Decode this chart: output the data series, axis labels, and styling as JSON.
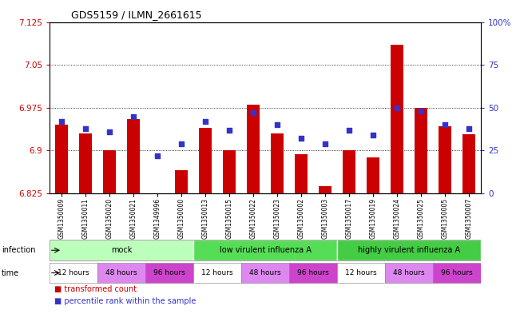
{
  "title": "GDS5159 / ILMN_2661615",
  "samples": [
    "GSM1350009",
    "GSM1350011",
    "GSM1350020",
    "GSM1350021",
    "GSM1349996",
    "GSM1350000",
    "GSM1350013",
    "GSM1350015",
    "GSM1350022",
    "GSM1350023",
    "GSM1350002",
    "GSM1350003",
    "GSM1350017",
    "GSM1350019",
    "GSM1350024",
    "GSM1350025",
    "GSM1350005",
    "GSM1350007"
  ],
  "bar_values": [
    6.945,
    6.93,
    6.9,
    6.955,
    6.825,
    6.865,
    6.94,
    6.9,
    6.98,
    6.93,
    6.893,
    6.838,
    6.9,
    6.888,
    7.085,
    6.975,
    6.943,
    6.928
  ],
  "dot_values": [
    42,
    38,
    36,
    45,
    22,
    29,
    42,
    37,
    47,
    40,
    32,
    29,
    37,
    34,
    50,
    48,
    40,
    38
  ],
  "y_min": 6.825,
  "y_max": 7.125,
  "y_ticks": [
    6.825,
    6.9,
    6.975,
    7.05,
    7.125
  ],
  "right_y_ticks": [
    0,
    25,
    50,
    75,
    100
  ],
  "bar_color": "#cc0000",
  "dot_color": "#3333cc",
  "bar_bottom": 6.825,
  "infection_groups": [
    {
      "label": "mock",
      "start": 0,
      "end": 6,
      "color": "#bbffbb"
    },
    {
      "label": "low virulent influenza A",
      "start": 6,
      "end": 12,
      "color": "#55dd55"
    },
    {
      "label": "highly virulent influenza A",
      "start": 12,
      "end": 18,
      "color": "#44cc44"
    }
  ],
  "time_labels": [
    "12 hours",
    "48 hours",
    "96 hours",
    "12 hours",
    "48 hours",
    "96 hours",
    "12 hours",
    "48 hours",
    "96 hours"
  ],
  "time_colors": [
    "#ffffff",
    "#dd88ee",
    "#cc44cc",
    "#ffffff",
    "#dd88ee",
    "#cc44cc",
    "#ffffff",
    "#dd88ee",
    "#cc44cc"
  ],
  "bg_color": "#ffffff",
  "label_color_left": "#cc0000",
  "label_color_right": "#3333cc"
}
